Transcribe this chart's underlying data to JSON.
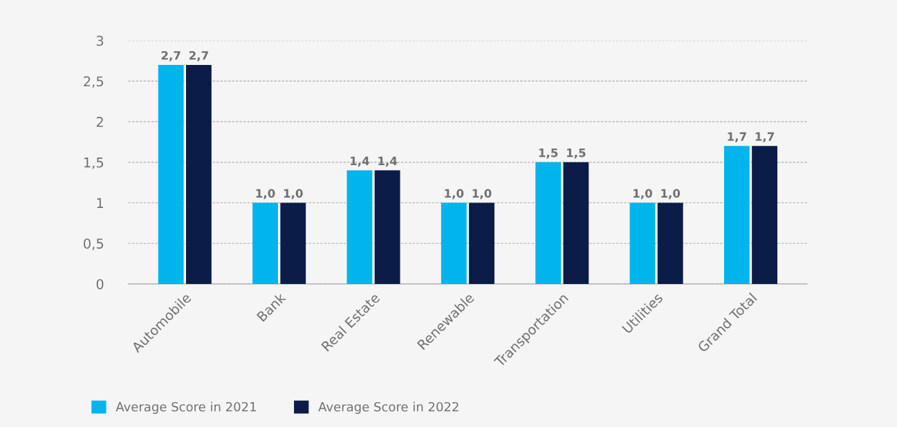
{
  "chart_data": {
    "type": "bar",
    "categories": [
      "Automobile",
      "Bank",
      "Real Estate",
      "Renewable",
      "Transportation",
      "Utilities",
      "Grand Total"
    ],
    "series": [
      {
        "name": "Average Score in 2021",
        "color": "#00b4ec",
        "values": [
          2.7,
          1.0,
          1.4,
          1.0,
          1.5,
          1.0,
          1.7
        ],
        "value_labels": [
          "2,7",
          "1,0",
          "1,4",
          "1,0",
          "1,5",
          "1,0",
          "1,7"
        ]
      },
      {
        "name": "Average Score in 2022",
        "color": "#0c1c48",
        "values": [
          2.7,
          1.0,
          1.4,
          1.0,
          1.5,
          1.0,
          1.7
        ],
        "value_labels": [
          "2,7",
          "1,0",
          "1,4",
          "1,0",
          "1,5",
          "1,0",
          "1,7"
        ]
      }
    ],
    "ylim": [
      0,
      3
    ],
    "yticks": [
      0,
      {
        "value": 0.5,
        "label": "0,5"
      },
      1,
      {
        "value": 1.5,
        "label": "1,5"
      },
      2,
      {
        "value": 2.5,
        "label": "2,5"
      },
      3
    ],
    "grid": "y",
    "legend": "bottom left"
  }
}
